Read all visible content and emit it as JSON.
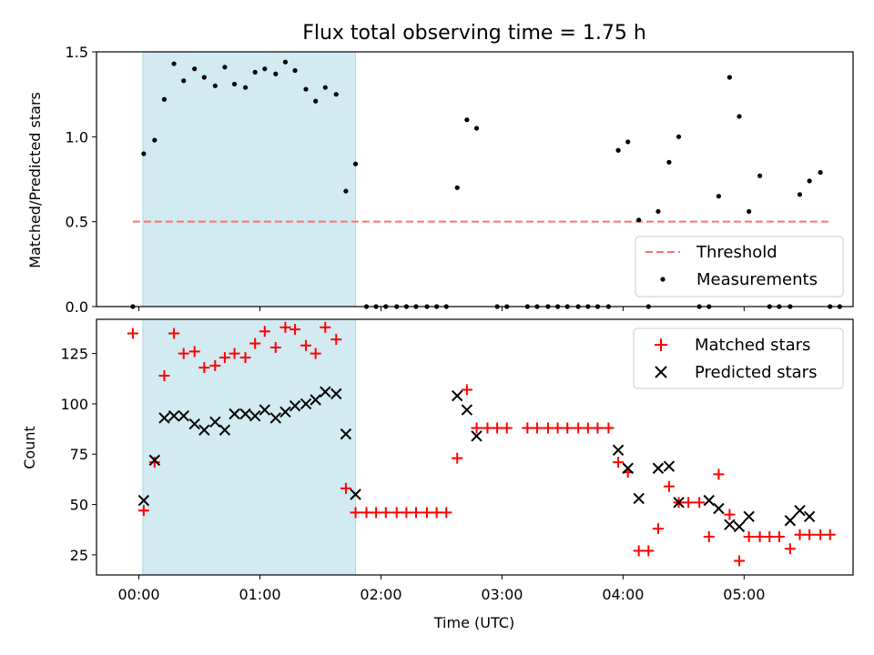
{
  "chart_data": [
    {
      "type": "scatter",
      "title": "Flux total observing time = 1.75 h",
      "xlabel": "",
      "ylabel": "Matched/Predicted stars",
      "xlim": [
        -0.35,
        5.9
      ],
      "ylim": [
        0,
        1.5
      ],
      "yticks": [
        0.0,
        0.5,
        1.0,
        1.5
      ],
      "ytick_labels": [
        "0.0",
        "0.5",
        "1.0",
        "1.5"
      ],
      "grid": false,
      "legend_position": "lower right",
      "shaded_interval": [
        0.033,
        1.79
      ],
      "shade_color": "#add8e6",
      "threshold": {
        "name": "Threshold",
        "value": 0.5,
        "x_range": [
          -0.05,
          5.72
        ],
        "color": "#ff7070",
        "style": "dashed"
      },
      "series": [
        {
          "name": "Measurements",
          "color": "#000000",
          "marker": "dot",
          "points": [
            [
              -0.05,
              0
            ],
            [
              0.04,
              0.9
            ],
            [
              0.13,
              0.98
            ],
            [
              0.21,
              1.22
            ],
            [
              0.29,
              1.43
            ],
            [
              0.37,
              1.33
            ],
            [
              0.46,
              1.4
            ],
            [
              0.54,
              1.35
            ],
            [
              0.63,
              1.3
            ],
            [
              0.71,
              1.41
            ],
            [
              0.79,
              1.31
            ],
            [
              0.88,
              1.29
            ],
            [
              0.96,
              1.38
            ],
            [
              1.04,
              1.4
            ],
            [
              1.13,
              1.37
            ],
            [
              1.21,
              1.44
            ],
            [
              1.29,
              1.39
            ],
            [
              1.38,
              1.28
            ],
            [
              1.46,
              1.21
            ],
            [
              1.54,
              1.29
            ],
            [
              1.63,
              1.25
            ],
            [
              1.71,
              0.68
            ],
            [
              1.79,
              0.84
            ],
            [
              1.88,
              0
            ],
            [
              1.96,
              0
            ],
            [
              2.04,
              0
            ],
            [
              2.13,
              0
            ],
            [
              2.21,
              0
            ],
            [
              2.29,
              0
            ],
            [
              2.38,
              0
            ],
            [
              2.46,
              0
            ],
            [
              2.54,
              0
            ],
            [
              2.63,
              0.7
            ],
            [
              2.71,
              1.1
            ],
            [
              2.79,
              1.05
            ],
            [
              2.96,
              0
            ],
            [
              3.04,
              0
            ],
            [
              3.21,
              0
            ],
            [
              3.29,
              0
            ],
            [
              3.38,
              0
            ],
            [
              3.46,
              0
            ],
            [
              3.54,
              0
            ],
            [
              3.63,
              0
            ],
            [
              3.71,
              0
            ],
            [
              3.79,
              0
            ],
            [
              3.88,
              0
            ],
            [
              3.96,
              0.92
            ],
            [
              4.04,
              0.97
            ],
            [
              4.13,
              0.51
            ],
            [
              4.21,
              0
            ],
            [
              4.29,
              0.56
            ],
            [
              4.38,
              0.85
            ],
            [
              4.46,
              1.0
            ],
            [
              4.63,
              0
            ],
            [
              4.71,
              0
            ],
            [
              4.79,
              0.65
            ],
            [
              4.88,
              1.35
            ],
            [
              4.96,
              1.12
            ],
            [
              5.04,
              0.56
            ],
            [
              5.13,
              0.77
            ],
            [
              5.21,
              0
            ],
            [
              5.29,
              0
            ],
            [
              5.38,
              0
            ],
            [
              5.46,
              0.66
            ],
            [
              5.54,
              0.74
            ],
            [
              5.63,
              0.79
            ],
            [
              5.71,
              0
            ],
            [
              5.79,
              0
            ]
          ]
        }
      ]
    },
    {
      "type": "scatter",
      "title": "",
      "xlabel": "Time (UTC)",
      "ylabel": "Count",
      "xlim": [
        -0.35,
        5.9
      ],
      "ylim": [
        15,
        142
      ],
      "yticks": [
        25,
        50,
        75,
        100,
        125
      ],
      "ytick_labels": [
        "25",
        "50",
        "75",
        "100",
        "125"
      ],
      "xticks": [
        0,
        1,
        2,
        3,
        4,
        5
      ],
      "xtick_labels": [
        "00:00",
        "01:00",
        "02:00",
        "03:00",
        "04:00",
        "05:00"
      ],
      "grid": false,
      "legend_position": "upper right",
      "shaded_interval": [
        0.033,
        1.79
      ],
      "shade_color": "#add8e6",
      "series": [
        {
          "name": "Matched stars",
          "color": "#ff0000",
          "marker": "plus",
          "points": [
            [
              -0.05,
              135
            ],
            [
              0.04,
              47
            ],
            [
              0.13,
              71
            ],
            [
              0.21,
              114
            ],
            [
              0.29,
              135
            ],
            [
              0.37,
              125
            ],
            [
              0.46,
              126
            ],
            [
              0.54,
              118
            ],
            [
              0.63,
              119
            ],
            [
              0.71,
              123
            ],
            [
              0.79,
              125
            ],
            [
              0.88,
              123
            ],
            [
              0.96,
              130
            ],
            [
              1.04,
              136
            ],
            [
              1.13,
              128
            ],
            [
              1.21,
              138
            ],
            [
              1.29,
              137
            ],
            [
              1.38,
              129
            ],
            [
              1.46,
              125
            ],
            [
              1.54,
              138
            ],
            [
              1.63,
              132
            ],
            [
              1.71,
              58
            ],
            [
              1.79,
              46
            ],
            [
              1.88,
              46
            ],
            [
              1.96,
              46
            ],
            [
              2.04,
              46
            ],
            [
              2.13,
              46
            ],
            [
              2.21,
              46
            ],
            [
              2.29,
              46
            ],
            [
              2.38,
              46
            ],
            [
              2.46,
              46
            ],
            [
              2.54,
              46
            ],
            [
              2.63,
              73
            ],
            [
              2.71,
              107
            ],
            [
              2.79,
              88
            ],
            [
              2.88,
              88
            ],
            [
              2.96,
              88
            ],
            [
              3.04,
              88
            ],
            [
              3.21,
              88
            ],
            [
              3.29,
              88
            ],
            [
              3.38,
              88
            ],
            [
              3.46,
              88
            ],
            [
              3.54,
              88
            ],
            [
              3.63,
              88
            ],
            [
              3.71,
              88
            ],
            [
              3.79,
              88
            ],
            [
              3.88,
              88
            ],
            [
              3.96,
              71
            ],
            [
              4.04,
              66
            ],
            [
              4.13,
              27
            ],
            [
              4.21,
              27
            ],
            [
              4.29,
              38
            ],
            [
              4.38,
              59
            ],
            [
              4.46,
              51
            ],
            [
              4.54,
              51
            ],
            [
              4.63,
              51
            ],
            [
              4.71,
              34
            ],
            [
              4.79,
              65
            ],
            [
              4.88,
              45
            ],
            [
              4.96,
              22
            ],
            [
              5.04,
              34
            ],
            [
              5.13,
              34
            ],
            [
              5.21,
              34
            ],
            [
              5.29,
              34
            ],
            [
              5.38,
              28
            ],
            [
              5.46,
              35
            ],
            [
              5.54,
              35
            ],
            [
              5.63,
              35
            ],
            [
              5.71,
              35
            ]
          ]
        },
        {
          "name": "Predicted stars",
          "color": "#000000",
          "marker": "x",
          "points": [
            [
              0.04,
              52
            ],
            [
              0.13,
              72
            ],
            [
              0.21,
              93
            ],
            [
              0.29,
              94
            ],
            [
              0.37,
              94
            ],
            [
              0.46,
              90
            ],
            [
              0.54,
              87
            ],
            [
              0.63,
              91
            ],
            [
              0.71,
              87
            ],
            [
              0.79,
              95
            ],
            [
              0.88,
              95
            ],
            [
              0.96,
              94
            ],
            [
              1.04,
              97
            ],
            [
              1.13,
              93
            ],
            [
              1.21,
              96
            ],
            [
              1.29,
              99
            ],
            [
              1.38,
              100
            ],
            [
              1.46,
              102
            ],
            [
              1.54,
              106
            ],
            [
              1.63,
              105
            ],
            [
              1.71,
              85
            ],
            [
              1.79,
              55
            ],
            [
              2.63,
              104
            ],
            [
              2.71,
              97
            ],
            [
              2.79,
              84
            ],
            [
              3.96,
              77
            ],
            [
              4.04,
              68
            ],
            [
              4.13,
              53
            ],
            [
              4.29,
              68
            ],
            [
              4.38,
              69
            ],
            [
              4.46,
              51
            ],
            [
              4.71,
              52
            ],
            [
              4.79,
              48
            ],
            [
              4.88,
              40
            ],
            [
              4.96,
              39
            ],
            [
              5.04,
              44
            ],
            [
              5.38,
              42
            ],
            [
              5.46,
              47
            ],
            [
              5.54,
              44
            ]
          ]
        }
      ]
    }
  ]
}
